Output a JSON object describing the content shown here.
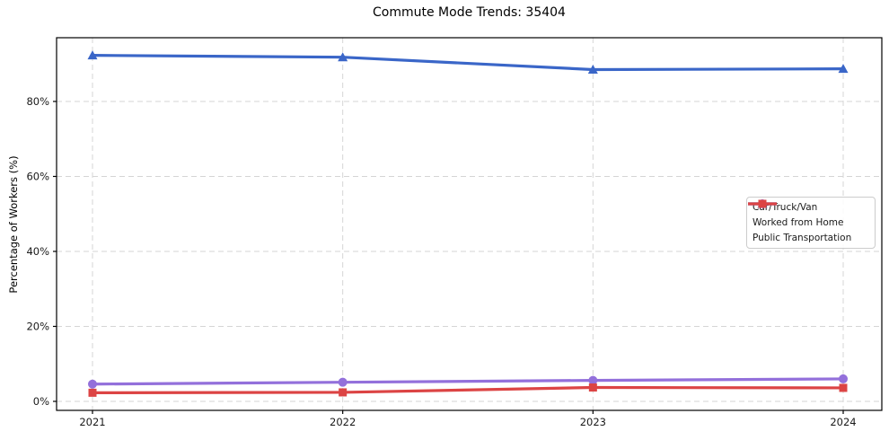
{
  "chart_data": {
    "type": "line",
    "title": "Commute Mode Trends: 35404",
    "xlabel": "",
    "ylabel": "Percentage of Workers (%)",
    "categories": [
      "2021",
      "2022",
      "2023",
      "2024"
    ],
    "series": [
      {
        "name": "Car/Truck/Van",
        "color": "#3A66C8",
        "marker": "triangle",
        "values": [
          92.3,
          91.8,
          88.5,
          88.7
        ]
      },
      {
        "name": "Worked from Home",
        "color": "#9370DB",
        "marker": "circle",
        "values": [
          4.6,
          5.1,
          5.6,
          6.0
        ]
      },
      {
        "name": "Public Transportation",
        "color": "#DC4444",
        "marker": "square",
        "values": [
          2.3,
          2.4,
          3.7,
          3.6
        ]
      }
    ],
    "yticks": [
      0,
      20,
      40,
      60,
      80
    ],
    "ytick_labels": [
      "0%",
      "20%",
      "40%",
      "60%",
      "80%"
    ],
    "ylim": [
      -2.4,
      97.0
    ],
    "grid": true,
    "grid_style": "dashed",
    "grid_color": "#d5d5d5",
    "legend_position": "center right",
    "spine_color": "#000000",
    "tick_label_color": "#1a1a1a"
  }
}
